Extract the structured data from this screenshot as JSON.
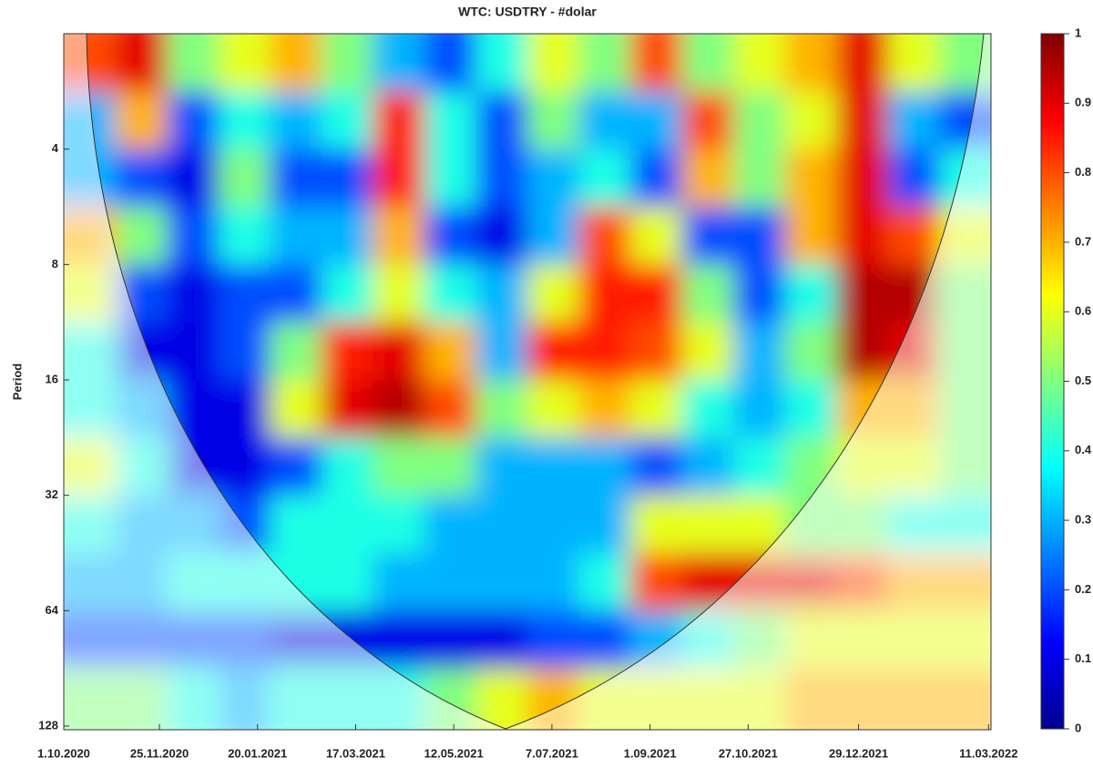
{
  "chart_data": {
    "type": "heatmap",
    "title": "WTC: USDTRY - #dolar",
    "ylabel": "Period",
    "xlim": [
      0,
      378
    ],
    "xticks": [
      {
        "value": 0,
        "label": "1.10.2020"
      },
      {
        "value": 39,
        "label": "25.11.2020"
      },
      {
        "value": 79,
        "label": "20.01.2021"
      },
      {
        "value": 119,
        "label": "17.03.2021"
      },
      {
        "value": 159,
        "label": "12.05.2021"
      },
      {
        "value": 199,
        "label": "7.07.2021"
      },
      {
        "value": 239,
        "label": "1.09.2021"
      },
      {
        "value": 279,
        "label": "27.10.2021"
      },
      {
        "value": 324,
        "label": "29.12.2021"
      },
      {
        "value": 377,
        "label": "11.03.2022"
      }
    ],
    "ylim": [
      2,
      128
    ],
    "y_log_base": 2,
    "y_reversed": true,
    "yticks": [
      4,
      8,
      16,
      32,
      64,
      128
    ],
    "clim": [
      0,
      1
    ],
    "cticks": [
      0,
      0.1,
      0.2,
      0.3,
      0.4,
      0.5,
      0.6,
      0.7,
      0.8,
      0.9,
      1
    ],
    "colormap": "jet",
    "z": [
      [
        0.8,
        0.9,
        0.5,
        0.6,
        0.7,
        0.5,
        0.3,
        0.2,
        0.4,
        0.6,
        0.5,
        0.8,
        0.5,
        0.6,
        0.7,
        0.9,
        0.6,
        0.5
      ],
      [
        0.3,
        0.7,
        0.2,
        0.4,
        0.3,
        0.4,
        0.85,
        0.4,
        0.2,
        0.5,
        0.3,
        0.3,
        0.8,
        0.5,
        0.6,
        0.9,
        0.3,
        0.2
      ],
      [
        0.3,
        0.2,
        0.1,
        0.5,
        0.2,
        0.2,
        0.85,
        0.4,
        0.2,
        0.3,
        0.4,
        0.2,
        0.7,
        0.5,
        0.7,
        0.9,
        0.2,
        0.4
      ],
      [
        0.7,
        0.5,
        0.2,
        0.4,
        0.3,
        0.3,
        0.7,
        0.2,
        0.1,
        0.3,
        0.8,
        0.6,
        0.2,
        0.2,
        0.7,
        0.9,
        0.8,
        0.6
      ],
      [
        0.6,
        0.2,
        0.1,
        0.2,
        0.2,
        0.4,
        0.6,
        0.4,
        0.3,
        0.6,
        0.85,
        0.85,
        0.5,
        0.2,
        0.4,
        0.95,
        0.95,
        0.5
      ],
      [
        0.4,
        0.1,
        0.1,
        0.2,
        0.5,
        0.85,
        0.9,
        0.7,
        0.3,
        0.85,
        0.85,
        0.8,
        0.6,
        0.3,
        0.5,
        0.95,
        0.9,
        0.5
      ],
      [
        0.4,
        0.3,
        0.1,
        0.1,
        0.6,
        0.9,
        0.95,
        0.8,
        0.5,
        0.6,
        0.7,
        0.6,
        0.4,
        0.3,
        0.4,
        0.7,
        0.7,
        0.5
      ],
      [
        0.6,
        0.4,
        0.1,
        0.1,
        0.2,
        0.4,
        0.5,
        0.5,
        0.3,
        0.3,
        0.3,
        0.2,
        0.3,
        0.4,
        0.5,
        0.6,
        0.6,
        0.5
      ],
      [
        0.4,
        0.3,
        0.3,
        0.2,
        0.4,
        0.4,
        0.4,
        0.3,
        0.3,
        0.3,
        0.3,
        0.6,
        0.6,
        0.6,
        0.5,
        0.5,
        0.4,
        0.4
      ],
      [
        0.3,
        0.3,
        0.4,
        0.4,
        0.4,
        0.4,
        0.3,
        0.3,
        0.3,
        0.3,
        0.4,
        0.8,
        0.9,
        0.9,
        0.9,
        0.8,
        0.7,
        0.7
      ],
      [
        0.2,
        0.2,
        0.2,
        0.2,
        0.1,
        0.1,
        0.1,
        0.1,
        0.1,
        0.2,
        0.2,
        0.3,
        0.4,
        0.5,
        0.6,
        0.6,
        0.6,
        0.6
      ],
      [
        0.5,
        0.5,
        0.4,
        0.3,
        0.4,
        0.4,
        0.4,
        0.5,
        0.6,
        0.7,
        0.6,
        0.6,
        0.6,
        0.6,
        0.7,
        0.7,
        0.7,
        0.7
      ]
    ]
  }
}
